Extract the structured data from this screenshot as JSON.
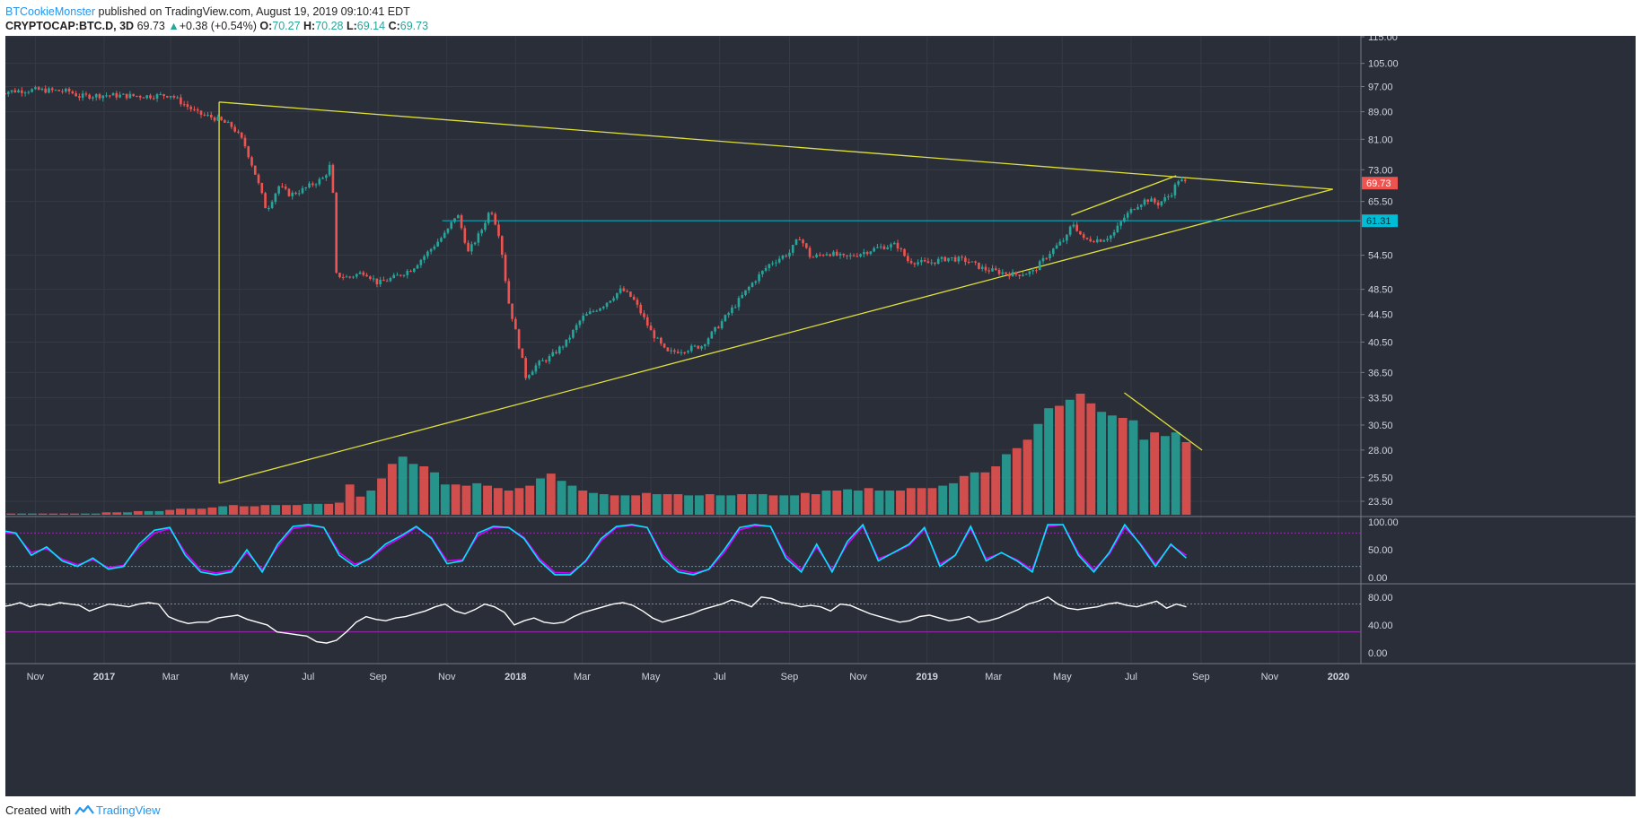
{
  "header": {
    "author": "BTCookieMonster",
    "published": "published on TradingView.com, August 19, 2019 09:10:41 EDT",
    "symbol": "CRYPTOCAP:BTC.D, 3D",
    "last": "69.73",
    "change": "+0.38 (+0.54%)",
    "o_label": "O:",
    "o_value": "70.27",
    "h_label": "H:",
    "h_value": "70.28",
    "l_label": "L:",
    "l_value": "69.14",
    "c_label": "C:",
    "c_value": "69.73"
  },
  "footer": {
    "created_with": "Created with",
    "brand": "TradingView"
  },
  "colors": {
    "background": "#2a2e39",
    "grid": "#363a45",
    "up": "#26a69a",
    "down": "#ef5350",
    "trendline": "#e0e03a",
    "hline": "#00bcd4",
    "stoch_k": "#00e5ff",
    "stoch_d": "#d500f9",
    "rsi": "#ffffff",
    "axis_text": "#d1d4dc"
  },
  "chart_data": [
    {
      "type": "candlestick",
      "panel": "price",
      "price_axis_ticks": [
        "115.00",
        "105.00",
        "97.00",
        "89.00",
        "81.00",
        "73.00",
        "65.50",
        "54.50",
        "48.50",
        "44.50",
        "40.50",
        "36.50",
        "33.50",
        "30.50",
        "28.00",
        "25.50",
        "23.50"
      ],
      "time_axis_ticks": [
        "Nov",
        "2017",
        "Mar",
        "May",
        "Jul",
        "Sep",
        "Nov",
        "2018",
        "Mar",
        "May",
        "Jul",
        "Sep",
        "Nov",
        "2019",
        "Mar",
        "May",
        "Jul",
        "Sep",
        "Nov",
        "2020"
      ],
      "last_price_label": "69.73",
      "horizontal_line_label": "61.31",
      "horizontal_line_value": 61.31,
      "series_close": [
        [
          "2016-09-29",
          95.2
        ],
        [
          "2016-10-15",
          95.6
        ],
        [
          "2016-11-01",
          95.9
        ],
        [
          "2016-11-15",
          95.7
        ],
        [
          "2016-12-01",
          95.4
        ],
        [
          "2016-12-10",
          93.8
        ],
        [
          "2017-01-01",
          94.2
        ],
        [
          "2017-01-20",
          94.0
        ],
        [
          "2017-02-10",
          93.9
        ],
        [
          "2017-03-01",
          94.3
        ],
        [
          "2017-03-10",
          92.0
        ],
        [
          "2017-03-25",
          88.5
        ],
        [
          "2017-04-10",
          87.0
        ],
        [
          "2017-04-25",
          84.5
        ],
        [
          "2017-05-05",
          80.0
        ],
        [
          "2017-05-15",
          72.0
        ],
        [
          "2017-05-25",
          63.5
        ],
        [
          "2017-06-05",
          69.0
        ],
        [
          "2017-06-15",
          67.0
        ],
        [
          "2017-06-25",
          68.0
        ],
        [
          "2017-07-05",
          69.5
        ],
        [
          "2017-07-15",
          71.0
        ],
        [
          "2017-07-22",
          75.0
        ],
        [
          "2017-07-25",
          51.0
        ],
        [
          "2017-08-05",
          50.5
        ],
        [
          "2017-08-20",
          51.5
        ],
        [
          "2017-09-01",
          49.5
        ],
        [
          "2017-09-15",
          50.5
        ],
        [
          "2017-10-01",
          52.0
        ],
        [
          "2017-10-15",
          55.0
        ],
        [
          "2017-11-01",
          59.0
        ],
        [
          "2017-11-10",
          63.0
        ],
        [
          "2017-11-20",
          55.0
        ],
        [
          "2017-12-01",
          59.0
        ],
        [
          "2017-12-10",
          64.0
        ],
        [
          "2017-12-18",
          58.0
        ],
        [
          "2017-12-25",
          47.0
        ],
        [
          "2018-01-01",
          42.0
        ],
        [
          "2018-01-10",
          36.0
        ],
        [
          "2018-01-20",
          37.5
        ],
        [
          "2018-02-01",
          38.5
        ],
        [
          "2018-02-15",
          40.5
        ],
        [
          "2018-03-01",
          44.0
        ],
        [
          "2018-03-20",
          46.0
        ],
        [
          "2018-04-05",
          48.5
        ],
        [
          "2018-04-15",
          47.0
        ],
        [
          "2018-05-01",
          42.0
        ],
        [
          "2018-05-15",
          39.0
        ],
        [
          "2018-06-01",
          39.5
        ],
        [
          "2018-06-15",
          40.0
        ],
        [
          "2018-07-01",
          43.0
        ],
        [
          "2018-07-15",
          46.0
        ],
        [
          "2018-08-01",
          50.0
        ],
        [
          "2018-08-15",
          53.0
        ],
        [
          "2018-09-01",
          55.0
        ],
        [
          "2018-09-10",
          58.0
        ],
        [
          "2018-09-20",
          54.0
        ],
        [
          "2018-10-05",
          55.0
        ],
        [
          "2018-10-20",
          54.0
        ],
        [
          "2018-11-05",
          55.0
        ],
        [
          "2018-11-20",
          56.0
        ],
        [
          "2018-12-05",
          56.5
        ],
        [
          "2018-12-15",
          53.5
        ],
        [
          "2019-01-01",
          53.0
        ],
        [
          "2019-01-20",
          54.0
        ],
        [
          "2019-02-05",
          53.5
        ],
        [
          "2019-02-20",
          52.0
        ],
        [
          "2019-03-05",
          51.5
        ],
        [
          "2019-03-20",
          51.0
        ],
        [
          "2019-04-05",
          51.5
        ],
        [
          "2019-04-20",
          55.0
        ],
        [
          "2019-05-05",
          58.0
        ],
        [
          "2019-05-10",
          61.0
        ],
        [
          "2019-05-20",
          57.5
        ],
        [
          "2019-06-05",
          57.5
        ],
        [
          "2019-06-15",
          58.5
        ],
        [
          "2019-06-25",
          62.0
        ],
        [
          "2019-07-05",
          64.5
        ],
        [
          "2019-07-15",
          66.0
        ],
        [
          "2019-07-25",
          65.0
        ],
        [
          "2019-08-05",
          67.0
        ],
        [
          "2019-08-12",
          70.5
        ],
        [
          "2019-08-19",
          69.73
        ]
      ]
    },
    {
      "type": "bar",
      "panel": "volume",
      "note": "relative volume overlay, unitless",
      "values": [
        0.01,
        0.01,
        0.01,
        0.01,
        0.01,
        0.01,
        0.01,
        0.01,
        0.01,
        0.01,
        0.02,
        0.02,
        0.02,
        0.03,
        0.03,
        0.03,
        0.04,
        0.05,
        0.05,
        0.05,
        0.06,
        0.07,
        0.08,
        0.07,
        0.07,
        0.08,
        0.08,
        0.08,
        0.08,
        0.09,
        0.09,
        0.09,
        0.1,
        0.25,
        0.15,
        0.2,
        0.3,
        0.42,
        0.48,
        0.42,
        0.4,
        0.35,
        0.25,
        0.25,
        0.24,
        0.26,
        0.24,
        0.22,
        0.2,
        0.22,
        0.24,
        0.3,
        0.34,
        0.28,
        0.24,
        0.2,
        0.18,
        0.17,
        0.16,
        0.16,
        0.16,
        0.18,
        0.17,
        0.17,
        0.17,
        0.16,
        0.16,
        0.17,
        0.16,
        0.16,
        0.17,
        0.17,
        0.17,
        0.16,
        0.16,
        0.16,
        0.18,
        0.17,
        0.2,
        0.2,
        0.21,
        0.2,
        0.22,
        0.2,
        0.2,
        0.2,
        0.22,
        0.22,
        0.22,
        0.24,
        0.26,
        0.32,
        0.35,
        0.35,
        0.4,
        0.5,
        0.55,
        0.62,
        0.75,
        0.88,
        0.9,
        0.95,
        1.0,
        0.92,
        0.85,
        0.82,
        0.8,
        0.78,
        0.62,
        0.68,
        0.65,
        0.68,
        0.6
      ],
      "trend_line": "descending"
    },
    {
      "type": "line",
      "panel": "stochastic",
      "axis_ticks": [
        "100.00",
        "50.00",
        "0.00"
      ],
      "upper_band": 80,
      "lower_band": 20,
      "series": [
        {
          "values": [
            85,
            80,
            40,
            55,
            30,
            20,
            35,
            15,
            20,
            60,
            85,
            90,
            40,
            10,
            5,
            10,
            50,
            10,
            60,
            92,
            95,
            90,
            40,
            20,
            35,
            60,
            75,
            92,
            70,
            25,
            30,
            80,
            92,
            90,
            70,
            30,
            5,
            5,
            30,
            70,
            92,
            95,
            90,
            35,
            10,
            5,
            15,
            50,
            90,
            95,
            92,
            35,
            10,
            60,
            10,
            65,
            95,
            30,
            45,
            60,
            90,
            20,
            40,
            92,
            30,
            45,
            30,
            10,
            95,
            95,
            40,
            10,
            45,
            95,
            60,
            20,
            60,
            35
          ]
        },
        {
          "values": [
            82,
            78,
            45,
            52,
            33,
            23,
            32,
            18,
            22,
            55,
            80,
            88,
            45,
            14,
            8,
            13,
            45,
            14,
            55,
            88,
            93,
            90,
            45,
            24,
            33,
            56,
            72,
            90,
            72,
            30,
            32,
            75,
            90,
            90,
            72,
            34,
            9,
            8,
            28,
            66,
            90,
            94,
            90,
            40,
            14,
            8,
            14,
            45,
            86,
            93,
            92,
            40,
            14,
            55,
            14,
            60,
            92,
            34,
            44,
            58,
            87,
            24,
            40,
            88,
            34,
            44,
            32,
            14,
            92,
            95,
            44,
            14,
            42,
            90,
            62,
            24,
            58,
            40
          ]
        }
      ]
    },
    {
      "type": "line",
      "panel": "rsi",
      "axis_ticks": [
        "80.00",
        "40.00",
        "0.00"
      ],
      "upper_band": 70,
      "lower_band": 30,
      "values": [
        66,
        68,
        72,
        66,
        70,
        68,
        72,
        70,
        68,
        60,
        65,
        70,
        68,
        66,
        70,
        72,
        70,
        52,
        46,
        42,
        44,
        44,
        50,
        52,
        54,
        48,
        44,
        40,
        30,
        28,
        26,
        24,
        16,
        14,
        18,
        30,
        44,
        52,
        48,
        46,
        50,
        52,
        56,
        60,
        66,
        70,
        60,
        56,
        62,
        70,
        66,
        58,
        40,
        46,
        50,
        44,
        42,
        44,
        52,
        58,
        62,
        66,
        70,
        72,
        68,
        60,
        50,
        44,
        48,
        52,
        56,
        62,
        66,
        70,
        76,
        72,
        66,
        80,
        78,
        72,
        70,
        66,
        68,
        66,
        60,
        70,
        68,
        62,
        56,
        52,
        48,
        44,
        46,
        52,
        54,
        50,
        46,
        48,
        52,
        44,
        46,
        50,
        56,
        62,
        70,
        74,
        80,
        70,
        64,
        62,
        64,
        66,
        70,
        72,
        68,
        66,
        70,
        74,
        64,
        70,
        66
      ]
    }
  ]
}
